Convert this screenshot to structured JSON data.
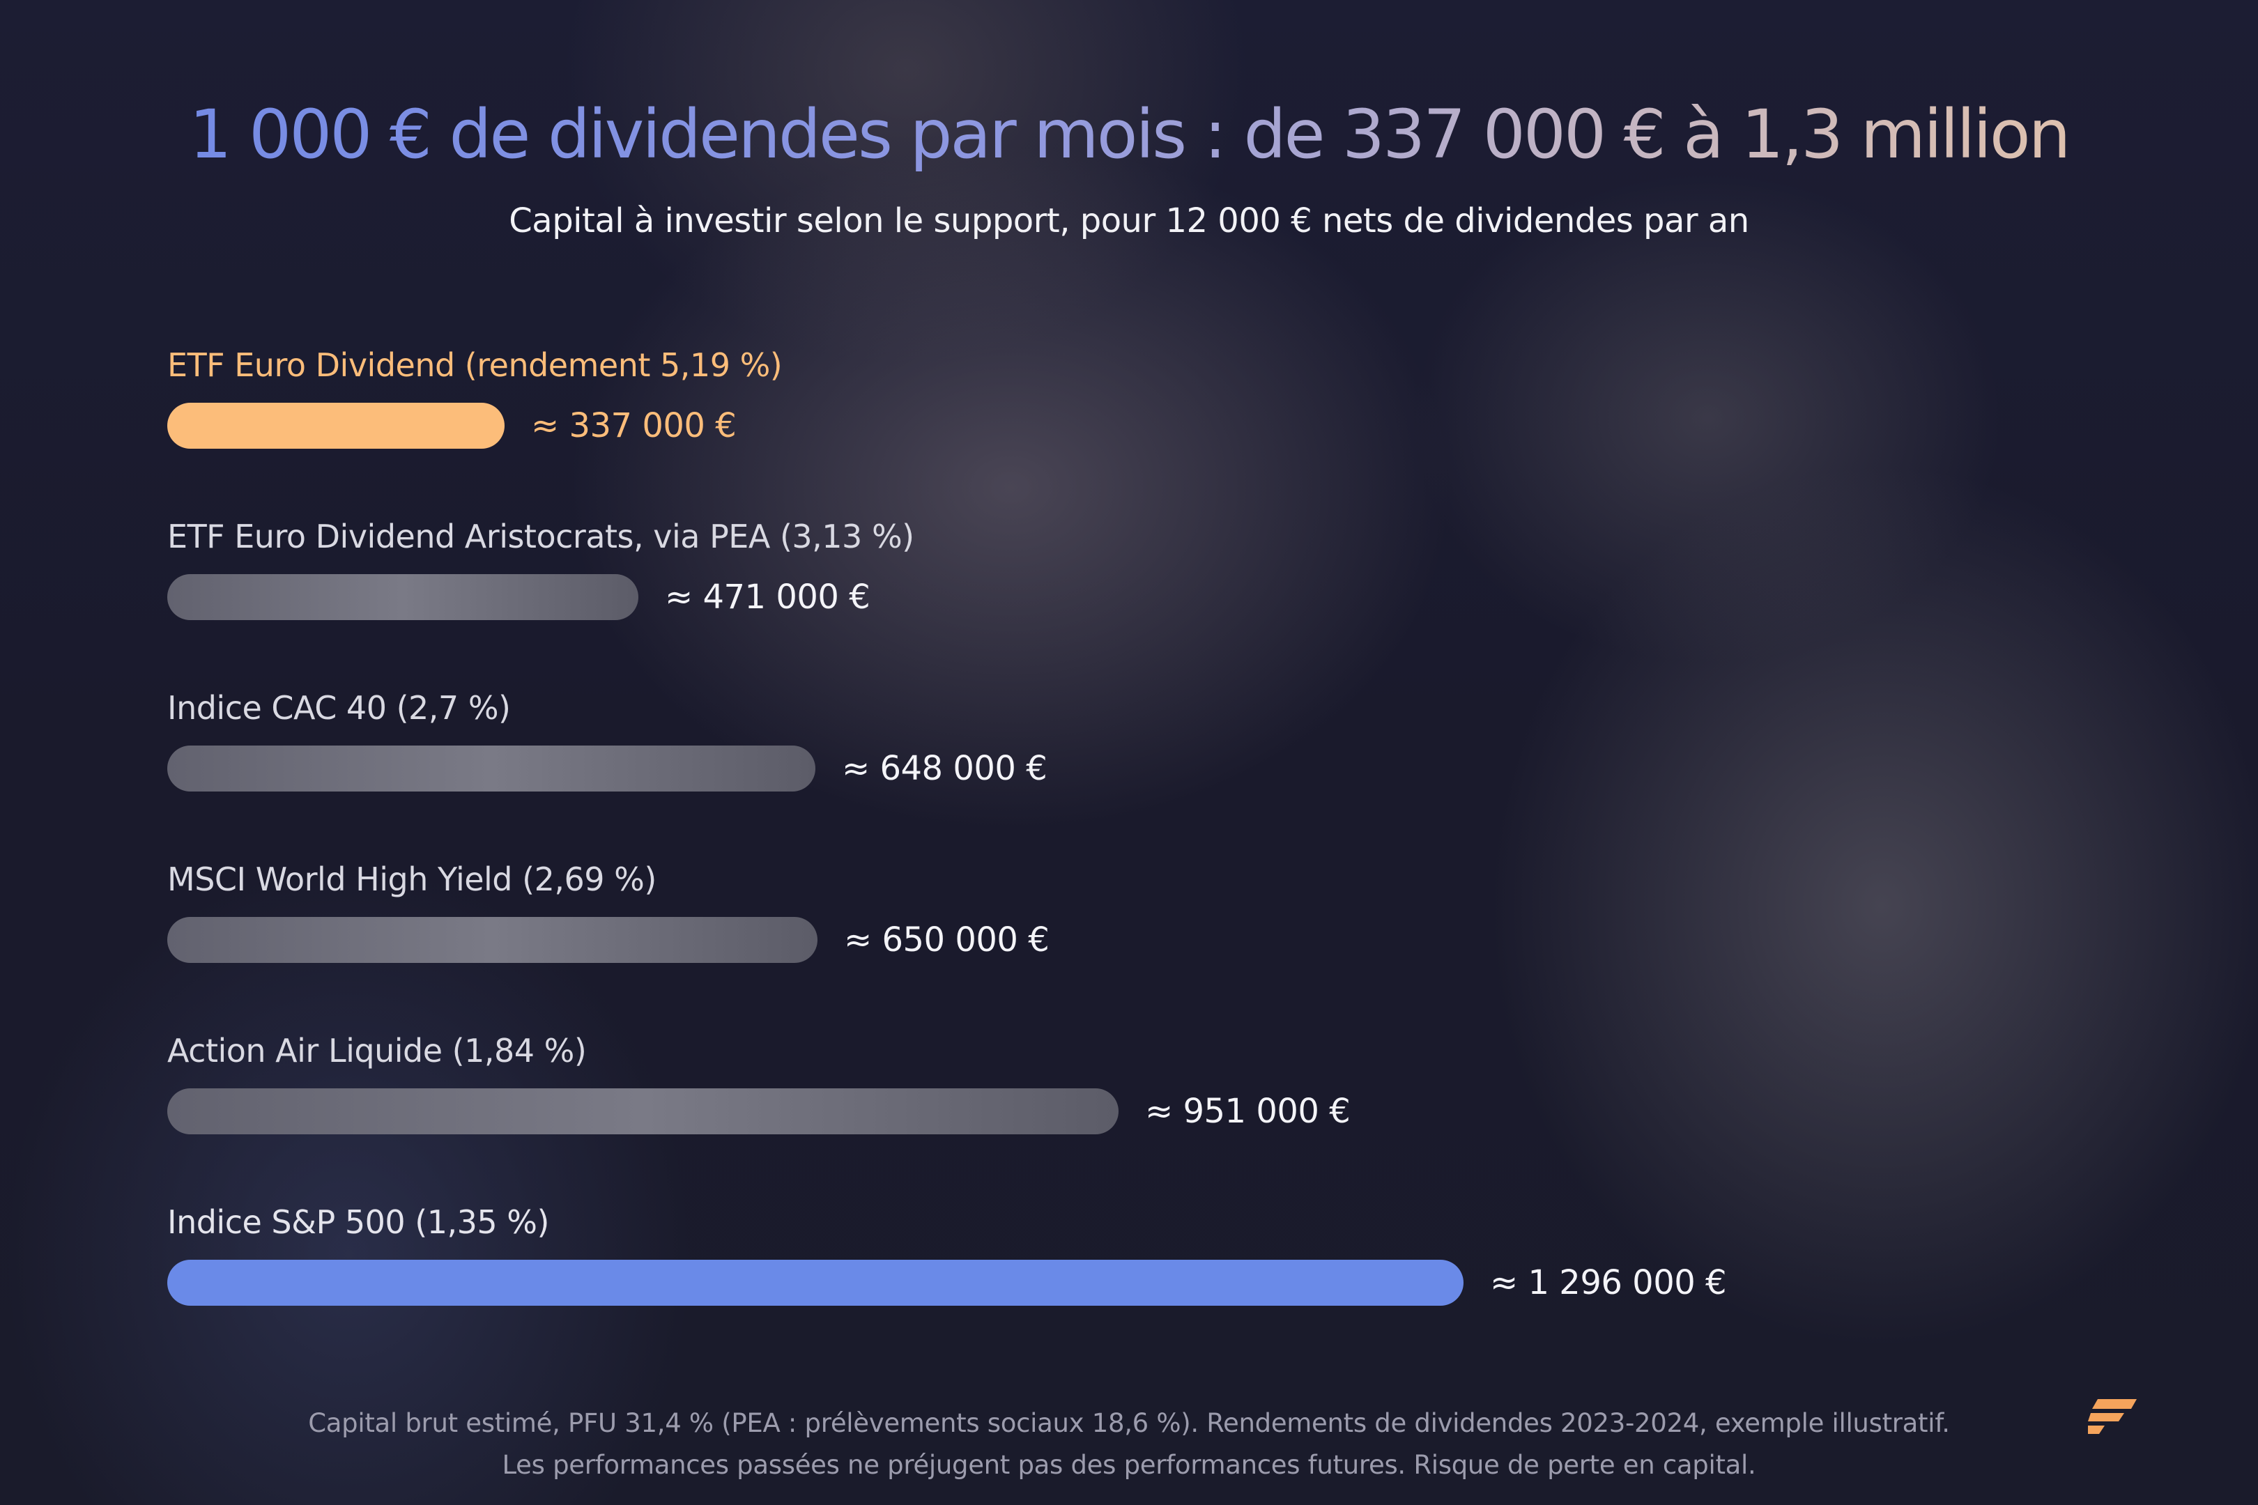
{
  "title": "1 000 € de dividendes par mois : de 337 000 € à 1,3 million",
  "subtitle": "Capital à investir selon le support, pour 12 000 € nets de dividendes par an",
  "chart_data": {
    "type": "bar",
    "orientation": "horizontal",
    "title": "1 000 € de dividendes par mois : de 337 000 € à 1,3 million",
    "subtitle": "Capital à investir selon le support, pour 12 000 € nets de dividendes par an",
    "categories": [
      "ETF Euro Dividend (rendement 5,19 %)",
      "ETF Euro Dividend Aristocrats, via PEA (3,13 %)",
      "Indice CAC 40 (2,7 %)",
      "MSCI World High Yield (2,69 %)",
      "Action Air Liquide (1,84 %)",
      "Indice S&P 500 (1,35 %)"
    ],
    "values": [
      337000,
      471000,
      648000,
      650000,
      951000,
      1296000
    ],
    "value_labels": [
      "≈ 337 000 €",
      "≈ 471 000 €",
      "≈ 648 000 €",
      "≈ 650 000 €",
      "≈ 951 000 €",
      "≈ 1 296 000 €"
    ],
    "colors": [
      "#fcbd7a",
      "#6e6e7c",
      "#6e6e7c",
      "#6e6e7c",
      "#6e6e7c",
      "#6a8ae8"
    ],
    "label_colors": [
      "#fcbd7a",
      "#d9d9e2",
      "#d9d9e2",
      "#d9d9e2",
      "#d9d9e2",
      "#e4e4ec"
    ],
    "value_label_colors": [
      "#fcbd7a",
      "#f4f4f8",
      "#f4f4f8",
      "#f4f4f8",
      "#f4f4f8",
      "#f4f4f8"
    ],
    "xlim": [
      0,
      1296000
    ],
    "grid": false,
    "legend": "none"
  },
  "footnote": {
    "line1": "Capital brut estimé, PFU 31,4 % (PEA : prélèvements sociaux 18,6 %). Rendements de dividendes 2023-2024, exemple illustratif.",
    "line2": "Les performances passées ne préjugent pas des performances futures. Risque de perte en capital."
  },
  "logo": {
    "icon": "brand-logo-icon",
    "color": "#f5a45c"
  }
}
